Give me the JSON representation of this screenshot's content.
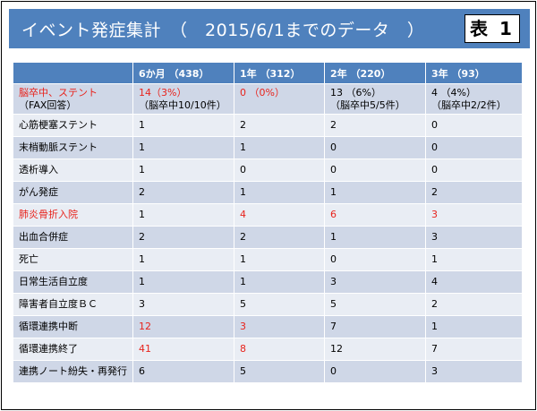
{
  "title": "イベント発症集計　（　2015/6/1までのデータ　）",
  "badge": "表 1",
  "header": [
    "",
    "6か月 （438）",
    "1年 （312）",
    "2年 （220）",
    "3年 （93）"
  ],
  "rows": [
    {
      "label": "脳卒中、ステント",
      "label_sub": "（FAX回答）",
      "values": [
        "14（3%）",
        "0 （0%）",
        "13 （6%）",
        "4 （4%）"
      ],
      "subs": [
        "（脳卒中10/10件）",
        "",
        "（脳卒中5/5件）",
        "（脳卒中2/2件）"
      ]
    },
    {
      "label": "心筋梗塞ステント",
      "values": [
        "1",
        "2",
        "2",
        "0"
      ]
    },
    {
      "label": "末梢動脈ステント",
      "values": [
        "1",
        "1",
        "0",
        "0"
      ]
    },
    {
      "label": "透析導入",
      "values": [
        "1",
        "0",
        "0",
        "0"
      ]
    },
    {
      "label": "がん発症",
      "values": [
        "2",
        "1",
        "1",
        "2"
      ]
    },
    {
      "label": "肺炎骨折入院",
      "values": [
        "1",
        "4",
        "6",
        "3"
      ]
    },
    {
      "label": "出血合併症",
      "values": [
        "2",
        "2",
        "1",
        "3"
      ]
    },
    {
      "label": "死亡",
      "values": [
        "1",
        "1",
        "0",
        "1"
      ]
    },
    {
      "label": "日常生活自立度",
      "values": [
        "1",
        "1",
        "3",
        "4"
      ]
    },
    {
      "label": "障害者自立度ＢＣ",
      "values": [
        "3",
        "5",
        "5",
        "2"
      ]
    },
    {
      "label": "循環連携中断",
      "values": [
        "12",
        "3",
        "7",
        "1"
      ]
    },
    {
      "label": "循環連携終了",
      "values": [
        "41",
        "8",
        "12",
        "7"
      ]
    },
    {
      "label": "連携ノート紛失・再発行",
      "values": [
        "6",
        "5",
        "0",
        "3"
      ]
    }
  ]
}
